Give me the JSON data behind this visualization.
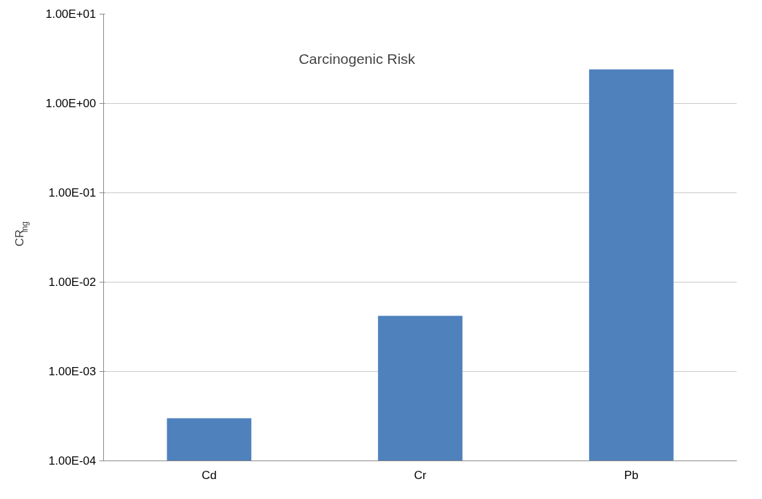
{
  "chart_data": {
    "type": "bar",
    "title": "Carcinogenic Risk",
    "ylabel": "CR$_{ing}$",
    "categories": [
      "Cd",
      "Cr",
      "Pb"
    ],
    "values": [
      0.0003,
      0.0042,
      2.4
    ],
    "color": "#4f81bd",
    "log": true,
    "ylim": [
      0.0001,
      10
    ],
    "yticks": [
      {
        "value": 0.0001,
        "label": "1.00E-04"
      },
      {
        "value": 0.001,
        "label": "1.00E-03"
      },
      {
        "value": 0.01,
        "label": "1.00E-02"
      },
      {
        "value": 0.1,
        "label": "1.00E-01"
      },
      {
        "value": 1,
        "label": "1.00E+00"
      },
      {
        "value": 10,
        "label": "1.00E+01"
      }
    ],
    "grid": "y"
  }
}
